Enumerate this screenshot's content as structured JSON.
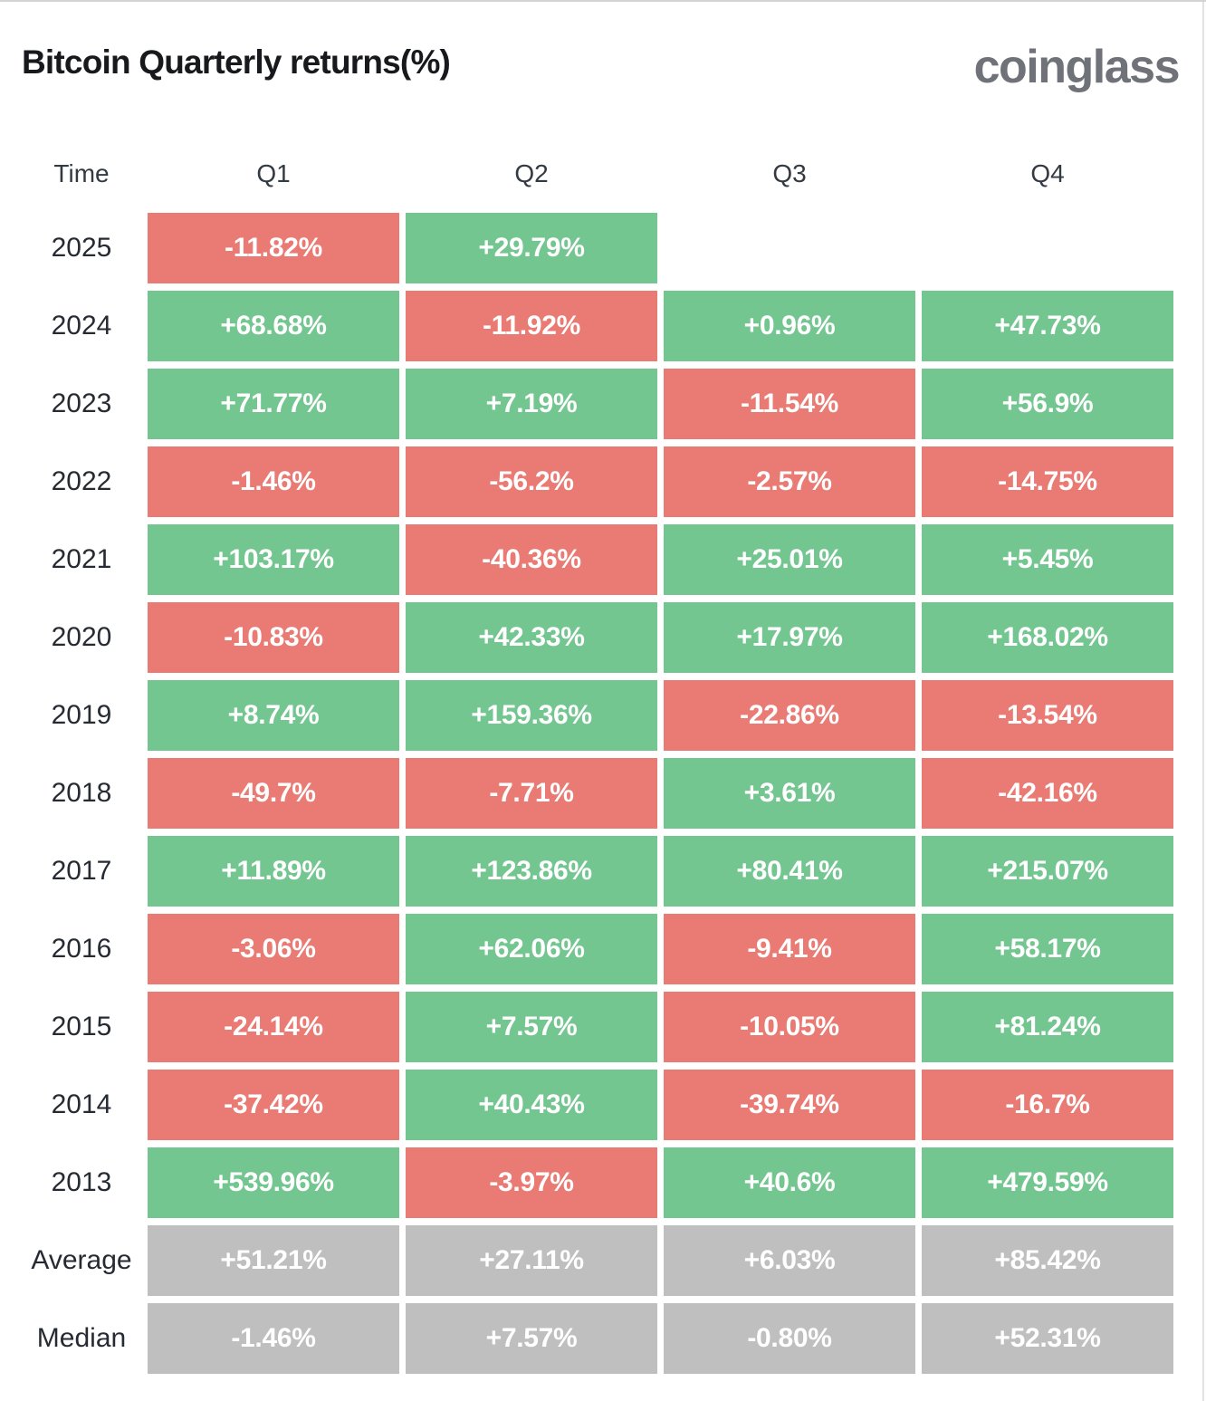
{
  "page": {
    "title": "Bitcoin Quarterly returns(%)",
    "brand": "coinglass"
  },
  "table": {
    "columns": [
      "Time",
      "Q1",
      "Q2",
      "Q3",
      "Q4"
    ],
    "rows": [
      {
        "label": "2025",
        "cells": [
          {
            "text": "-11.82%",
            "type": "negative"
          },
          {
            "text": "+29.79%",
            "type": "positive"
          },
          {
            "text": "",
            "type": "empty"
          },
          {
            "text": "",
            "type": "empty"
          }
        ]
      },
      {
        "label": "2024",
        "cells": [
          {
            "text": "+68.68%",
            "type": "positive"
          },
          {
            "text": "-11.92%",
            "type": "negative"
          },
          {
            "text": "+0.96%",
            "type": "positive"
          },
          {
            "text": "+47.73%",
            "type": "positive"
          }
        ]
      },
      {
        "label": "2023",
        "cells": [
          {
            "text": "+71.77%",
            "type": "positive"
          },
          {
            "text": "+7.19%",
            "type": "positive"
          },
          {
            "text": "-11.54%",
            "type": "negative"
          },
          {
            "text": "+56.9%",
            "type": "positive"
          }
        ]
      },
      {
        "label": "2022",
        "cells": [
          {
            "text": "-1.46%",
            "type": "negative"
          },
          {
            "text": "-56.2%",
            "type": "negative"
          },
          {
            "text": "-2.57%",
            "type": "negative"
          },
          {
            "text": "-14.75%",
            "type": "negative"
          }
        ]
      },
      {
        "label": "2021",
        "cells": [
          {
            "text": "+103.17%",
            "type": "positive"
          },
          {
            "text": "-40.36%",
            "type": "negative"
          },
          {
            "text": "+25.01%",
            "type": "positive"
          },
          {
            "text": "+5.45%",
            "type": "positive"
          }
        ]
      },
      {
        "label": "2020",
        "cells": [
          {
            "text": "-10.83%",
            "type": "negative"
          },
          {
            "text": "+42.33%",
            "type": "positive"
          },
          {
            "text": "+17.97%",
            "type": "positive"
          },
          {
            "text": "+168.02%",
            "type": "positive"
          }
        ]
      },
      {
        "label": "2019",
        "cells": [
          {
            "text": "+8.74%",
            "type": "positive"
          },
          {
            "text": "+159.36%",
            "type": "positive"
          },
          {
            "text": "-22.86%",
            "type": "negative"
          },
          {
            "text": "-13.54%",
            "type": "negative"
          }
        ]
      },
      {
        "label": "2018",
        "cells": [
          {
            "text": "-49.7%",
            "type": "negative"
          },
          {
            "text": "-7.71%",
            "type": "negative"
          },
          {
            "text": "+3.61%",
            "type": "positive"
          },
          {
            "text": "-42.16%",
            "type": "negative"
          }
        ]
      },
      {
        "label": "2017",
        "cells": [
          {
            "text": "+11.89%",
            "type": "positive"
          },
          {
            "text": "+123.86%",
            "type": "positive"
          },
          {
            "text": "+80.41%",
            "type": "positive"
          },
          {
            "text": "+215.07%",
            "type": "positive"
          }
        ]
      },
      {
        "label": "2016",
        "cells": [
          {
            "text": "-3.06%",
            "type": "negative"
          },
          {
            "text": "+62.06%",
            "type": "positive"
          },
          {
            "text": "-9.41%",
            "type": "negative"
          },
          {
            "text": "+58.17%",
            "type": "positive"
          }
        ]
      },
      {
        "label": "2015",
        "cells": [
          {
            "text": "-24.14%",
            "type": "negative"
          },
          {
            "text": "+7.57%",
            "type": "positive"
          },
          {
            "text": "-10.05%",
            "type": "negative"
          },
          {
            "text": "+81.24%",
            "type": "positive"
          }
        ]
      },
      {
        "label": "2014",
        "cells": [
          {
            "text": "-37.42%",
            "type": "negative"
          },
          {
            "text": "+40.43%",
            "type": "positive"
          },
          {
            "text": "-39.74%",
            "type": "negative"
          },
          {
            "text": "-16.7%",
            "type": "negative"
          }
        ]
      },
      {
        "label": "2013",
        "cells": [
          {
            "text": "+539.96%",
            "type": "positive"
          },
          {
            "text": "-3.97%",
            "type": "negative"
          },
          {
            "text": "+40.6%",
            "type": "positive"
          },
          {
            "text": "+479.59%",
            "type": "positive"
          }
        ]
      },
      {
        "label": "Average",
        "cells": [
          {
            "text": "+51.21%",
            "type": "neutral"
          },
          {
            "text": "+27.11%",
            "type": "neutral"
          },
          {
            "text": "+6.03%",
            "type": "neutral"
          },
          {
            "text": "+85.42%",
            "type": "neutral"
          }
        ]
      },
      {
        "label": "Median",
        "cells": [
          {
            "text": "-1.46%",
            "type": "neutral"
          },
          {
            "text": "+7.57%",
            "type": "neutral"
          },
          {
            "text": "-0.80%",
            "type": "neutral"
          },
          {
            "text": "+52.31%",
            "type": "neutral"
          }
        ]
      }
    ]
  },
  "colors": {
    "positive": "#74c691",
    "negative": "#e97b74",
    "neutral": "#bfbfbf",
    "title": "#17191d",
    "brand": "#6f7278"
  },
  "chart_data": {
    "type": "heatmap",
    "title": "Bitcoin Quarterly returns(%)",
    "columns": [
      "Q1",
      "Q2",
      "Q3",
      "Q4"
    ],
    "rows": [
      "2025",
      "2024",
      "2023",
      "2022",
      "2021",
      "2020",
      "2019",
      "2018",
      "2017",
      "2016",
      "2015",
      "2014",
      "2013",
      "Average",
      "Median"
    ],
    "values": [
      [
        -11.82,
        29.79,
        null,
        null
      ],
      [
        68.68,
        -11.92,
        0.96,
        47.73
      ],
      [
        71.77,
        7.19,
        -11.54,
        56.9
      ],
      [
        -1.46,
        -56.2,
        -2.57,
        -14.75
      ],
      [
        103.17,
        -40.36,
        25.01,
        5.45
      ],
      [
        -10.83,
        42.33,
        17.97,
        168.02
      ],
      [
        8.74,
        159.36,
        -22.86,
        -13.54
      ],
      [
        -49.7,
        -7.71,
        3.61,
        -42.16
      ],
      [
        11.89,
        123.86,
        80.41,
        215.07
      ],
      [
        -3.06,
        62.06,
        -9.41,
        58.17
      ],
      [
        -24.14,
        7.57,
        -10.05,
        81.24
      ],
      [
        -37.42,
        40.43,
        -39.74,
        -16.7
      ],
      [
        539.96,
        -3.97,
        40.6,
        479.59
      ],
      [
        51.21,
        27.11,
        6.03,
        85.42
      ],
      [
        -1.46,
        7.57,
        -0.8,
        52.31
      ]
    ],
    "unit": "%",
    "legend": "green = positive quarter, red = negative quarter, gray = summary rows"
  }
}
